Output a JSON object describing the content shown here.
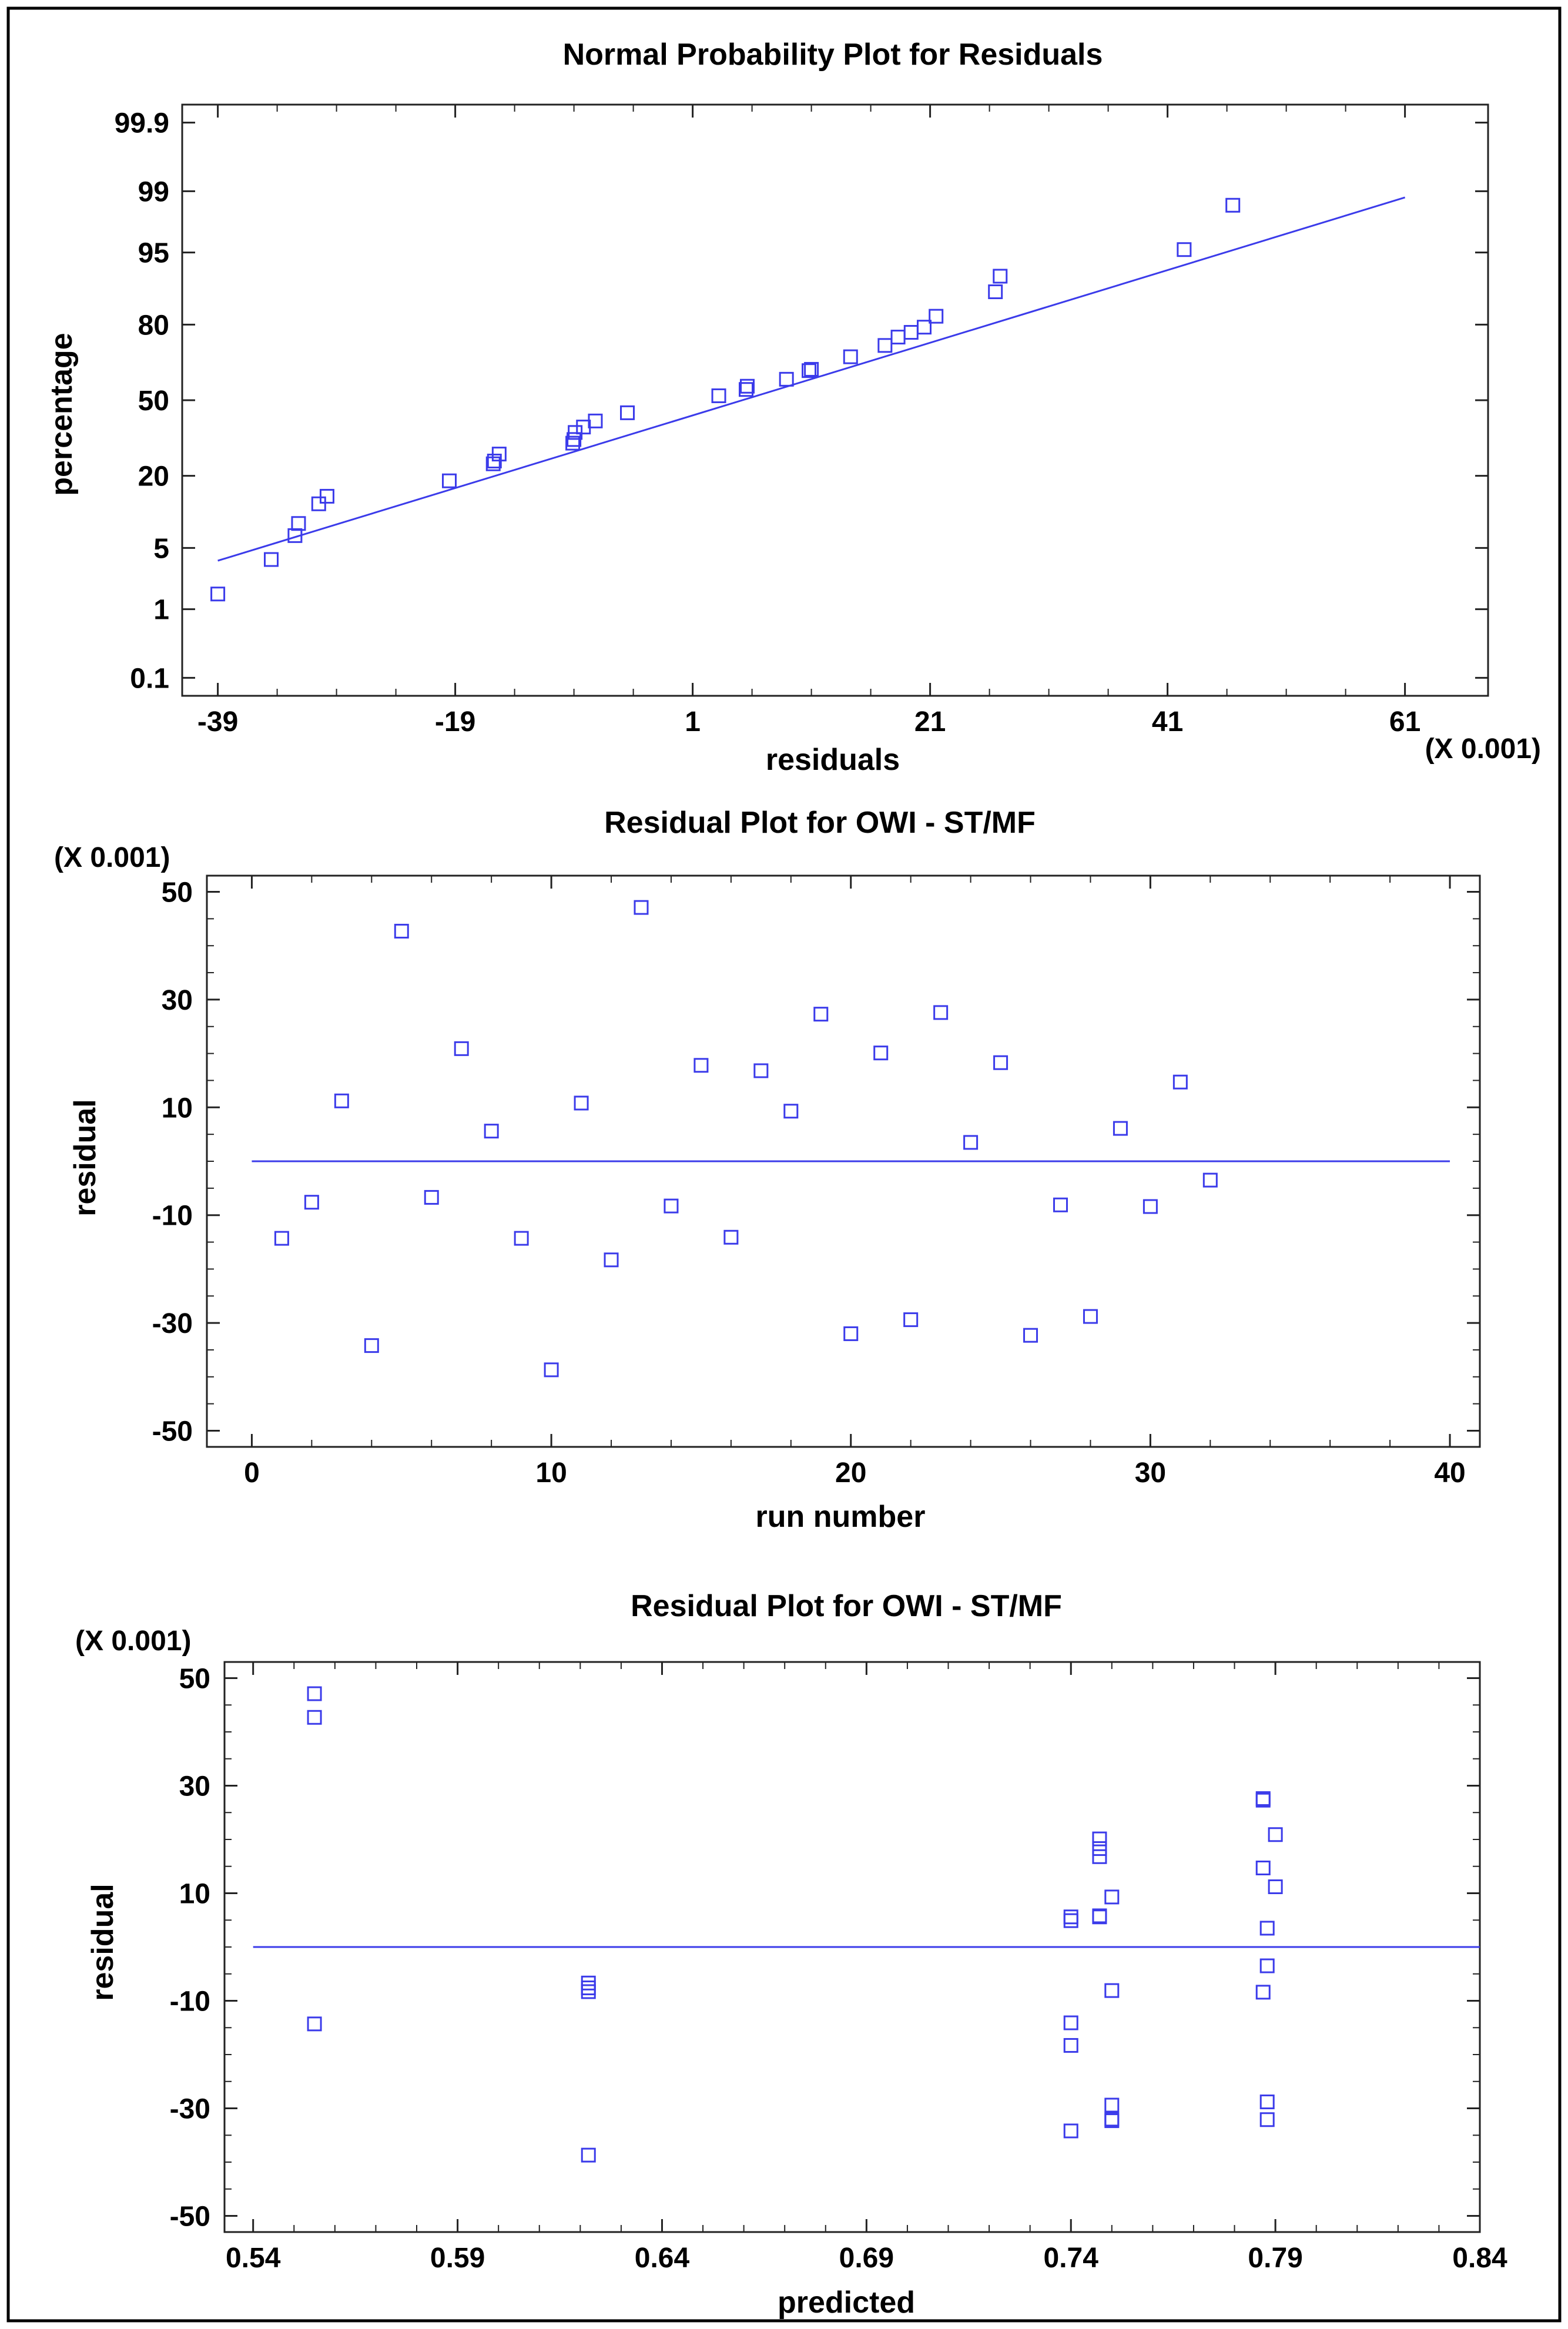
{
  "chart_data": [
    {
      "type": "scatter",
      "title": "Normal Probability Plot for Residuals",
      "xlabel": "residuals",
      "ylabel": "percentage",
      "x_scale_note": "(X 0.001)",
      "xlim": [
        -42,
        68
      ],
      "x_ticks": [
        -39,
        -19,
        1,
        21,
        41,
        61
      ],
      "y_scale": "normal-probability",
      "y_ticks": [
        0.1,
        1,
        5,
        20,
        50,
        80,
        95,
        99,
        99.9
      ],
      "y_tick_labels": [
        "0.1",
        "1",
        "5",
        "20",
        "50",
        "80",
        "95",
        "99",
        "99.9"
      ],
      "points": {
        "x": [
          -39,
          -34.5,
          -32.5,
          -32.2,
          -30.5,
          -29.8,
          -19.5,
          -15.8,
          -15.7,
          -15.3,
          -9.1,
          -9,
          -8.9,
          -8.2,
          -7.2,
          -4.5,
          3.2,
          5.5,
          5.6,
          8.9,
          10.8,
          11,
          14.3,
          17.2,
          18.3,
          19.4,
          20.5,
          21.5,
          26.5,
          26.9,
          42.4,
          46.5
        ],
        "y": [
          1.55,
          3.81,
          6.59,
          8.5,
          12.44,
          14.25,
          18.47,
          23.95,
          24.92,
          27.45,
          31.63,
          33.09,
          35.98,
          38.27,
          40.86,
          44.44,
          51.97,
          54.76,
          56.18,
          59.22,
          62.9,
          63.45,
          68.56,
          72.89,
          75.89,
          77.5,
          79.2,
          82.5,
          88.63,
          91.63,
          95.32,
          98.5
        ]
      },
      "fit_line": {
        "x": [
          -39,
          61
        ],
        "y": [
          3.7,
          98.8
        ]
      }
    },
    {
      "type": "scatter",
      "title": "Residual Plot for OWI - ST/MF",
      "xlabel": "run number",
      "ylabel": "residual",
      "y_scale_note": "(X 0.001)",
      "xlim": [
        -1.5,
        41
      ],
      "ylim": [
        -53,
        53
      ],
      "x_ticks": [
        0,
        10,
        20,
        30,
        40
      ],
      "y_ticks": [
        -50,
        -30,
        -10,
        10,
        30,
        50
      ],
      "x": [
        1,
        2,
        3,
        4,
        5,
        6,
        7,
        8,
        9,
        10,
        11,
        12,
        13,
        14,
        15,
        16,
        17,
        18,
        19,
        20,
        21,
        22,
        23,
        24,
        25,
        26,
        27,
        28,
        29,
        30,
        31,
        32
      ],
      "y": [
        -14.3,
        -7.6,
        11.2,
        -34.2,
        42.7,
        -6.7,
        20.9,
        5.6,
        -14.3,
        -38.7,
        10.8,
        -18.3,
        47.1,
        -8.3,
        17.8,
        -14.1,
        16.8,
        9.3,
        27.3,
        -32,
        20.1,
        -29.4,
        27.6,
        3.5,
        18.3,
        -32.3,
        -8.1,
        -28.8,
        6.1,
        -8.4,
        14.7,
        -3.5
      ],
      "reference_line": 0
    },
    {
      "type": "scatter",
      "title": "Residual Plot for OWI - ST/MF",
      "xlabel": "predicted",
      "ylabel": "residual",
      "y_scale_note": "(X 0.001)",
      "xlim": [
        0.533,
        0.84
      ],
      "ylim": [
        -53,
        53
      ],
      "x_ticks": [
        0.54,
        0.59,
        0.64,
        0.69,
        0.74,
        0.79,
        0.84
      ],
      "y_ticks": [
        -50,
        -30,
        -10,
        10,
        30,
        50
      ],
      "x": [
        0.555,
        0.555,
        0.555,
        0.622,
        0.622,
        0.622,
        0.622,
        0.74,
        0.74,
        0.74,
        0.74,
        0.74,
        0.747,
        0.747,
        0.747,
        0.747,
        0.747,
        0.75,
        0.75,
        0.75,
        0.75,
        0.75,
        0.787,
        0.787,
        0.787,
        0.787,
        0.788,
        0.788,
        0.788,
        0.788,
        0.79,
        0.79
      ],
      "y": [
        47.1,
        42.7,
        -14.3,
        -6.7,
        -7.6,
        -8.3,
        -38.7,
        5.6,
        -14.1,
        -18.3,
        -34.2,
        4.9,
        20.1,
        18.3,
        16.8,
        5.6,
        5.8,
        9.3,
        -8.1,
        -29.4,
        -32.3,
        -32,
        27.6,
        27.3,
        14.7,
        -8.4,
        3.5,
        -3.5,
        -28.8,
        -32.1,
        20.9,
        11.2
      ],
      "reference_line": 0
    }
  ]
}
